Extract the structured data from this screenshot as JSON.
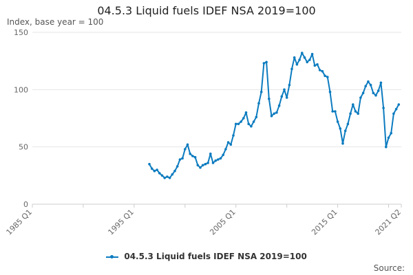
{
  "chart_data": {
    "type": "line",
    "title": "04.5.3 Liquid fuels IDEF NSA 2019=100",
    "subtitle": "Index, base year = 100",
    "ylim": [
      0,
      150
    ],
    "yticks": [
      0,
      50,
      100,
      150
    ],
    "xtick_labels": [
      "1985 Q1",
      "1995 Q1",
      "2005 Q1",
      "2015 Q1",
      "2021 Q2"
    ],
    "xtick_quarters": [
      "1985 Q1",
      "1995 Q1",
      "2005 Q1",
      "2015 Q1",
      "2021 Q2"
    ],
    "grid": true,
    "legend": "bottom-center",
    "series": [
      {
        "name": "04.5.3 Liquid fuels IDEF NSA 2019=100",
        "color": "#0b7bbf",
        "points": [
          [
            "1996 Q3",
            35
          ],
          [
            "1996 Q4",
            31
          ],
          [
            "1997 Q1",
            29
          ],
          [
            "1997 Q2",
            30
          ],
          [
            "1997 Q3",
            27
          ],
          [
            "1997 Q4",
            25
          ],
          [
            "1998 Q1",
            23
          ],
          [
            "1998 Q2",
            24
          ],
          [
            "1998 Q3",
            23
          ],
          [
            "1998 Q4",
            26
          ],
          [
            "1999 Q1",
            29
          ],
          [
            "1999 Q2",
            33
          ],
          [
            "1999 Q3",
            39
          ],
          [
            "1999 Q4",
            40
          ],
          [
            "2000 Q1",
            48
          ],
          [
            "2000 Q2",
            52
          ],
          [
            "2000 Q3",
            44
          ],
          [
            "2000 Q4",
            42
          ],
          [
            "2001 Q1",
            41
          ],
          [
            "2001 Q2",
            34
          ],
          [
            "2001 Q3",
            32
          ],
          [
            "2001 Q4",
            34
          ],
          [
            "2002 Q1",
            35
          ],
          [
            "2002 Q2",
            36
          ],
          [
            "2002 Q3",
            44
          ],
          [
            "2002 Q4",
            36
          ],
          [
            "2003 Q1",
            38
          ],
          [
            "2003 Q2",
            39
          ],
          [
            "2003 Q3",
            40
          ],
          [
            "2003 Q4",
            43
          ],
          [
            "2004 Q1",
            48
          ],
          [
            "2004 Q2",
            54
          ],
          [
            "2004 Q3",
            52
          ],
          [
            "2004 Q4",
            60
          ],
          [
            "2005 Q1",
            70
          ],
          [
            "2005 Q2",
            70
          ],
          [
            "2005 Q3",
            72
          ],
          [
            "2005 Q4",
            75
          ],
          [
            "2006 Q1",
            80
          ],
          [
            "2006 Q2",
            70
          ],
          [
            "2006 Q3",
            68
          ],
          [
            "2006 Q4",
            72
          ],
          [
            "2007 Q1",
            76
          ],
          [
            "2007 Q2",
            88
          ],
          [
            "2007 Q3",
            98
          ],
          [
            "2007 Q4",
            123
          ],
          [
            "2008 Q1",
            124
          ],
          [
            "2008 Q2",
            92
          ],
          [
            "2008 Q3",
            77
          ],
          [
            "2008 Q4",
            79
          ],
          [
            "2009 Q1",
            80
          ],
          [
            "2009 Q2",
            86
          ],
          [
            "2009 Q3",
            94
          ],
          [
            "2009 Q4",
            100
          ],
          [
            "2010 Q1",
            93
          ],
          [
            "2010 Q2",
            104
          ],
          [
            "2010 Q3",
            118
          ],
          [
            "2010 Q4",
            128
          ],
          [
            "2011 Q1",
            122
          ],
          [
            "2011 Q2",
            126
          ],
          [
            "2011 Q3",
            132
          ],
          [
            "2011 Q4",
            128
          ],
          [
            "2012 Q1",
            124
          ],
          [
            "2012 Q2",
            126
          ],
          [
            "2012 Q3",
            131
          ],
          [
            "2012 Q4",
            121
          ],
          [
            "2013 Q1",
            122
          ],
          [
            "2013 Q2",
            117
          ],
          [
            "2013 Q3",
            116
          ],
          [
            "2013 Q4",
            112
          ],
          [
            "2014 Q1",
            111
          ],
          [
            "2014 Q2",
            98
          ],
          [
            "2014 Q3",
            81
          ],
          [
            "2014 Q4",
            81
          ],
          [
            "2015 Q1",
            72
          ],
          [
            "2015 Q2",
            66
          ],
          [
            "2015 Q3",
            53
          ],
          [
            "2015 Q4",
            64
          ],
          [
            "2016 Q1",
            70
          ],
          [
            "2016 Q2",
            79
          ],
          [
            "2016 Q3",
            87
          ],
          [
            "2016 Q4",
            81
          ],
          [
            "2017 Q1",
            79
          ],
          [
            "2017 Q2",
            93
          ],
          [
            "2017 Q3",
            97
          ],
          [
            "2017 Q4",
            103
          ],
          [
            "2018 Q1",
            107
          ],
          [
            "2018 Q2",
            104
          ],
          [
            "2018 Q3",
            97
          ],
          [
            "2018 Q4",
            95
          ],
          [
            "2019 Q1",
            99
          ],
          [
            "2019 Q2",
            106
          ],
          [
            "2019 Q3",
            84
          ],
          [
            "2019 Q4",
            50
          ],
          [
            "2020 Q1",
            58
          ],
          [
            "2020 Q2",
            62
          ],
          [
            "2020 Q3",
            79
          ],
          [
            "2020 Q4",
            83
          ],
          [
            "2021 Q1",
            87
          ]
        ]
      }
    ],
    "source_label": "Source:"
  }
}
